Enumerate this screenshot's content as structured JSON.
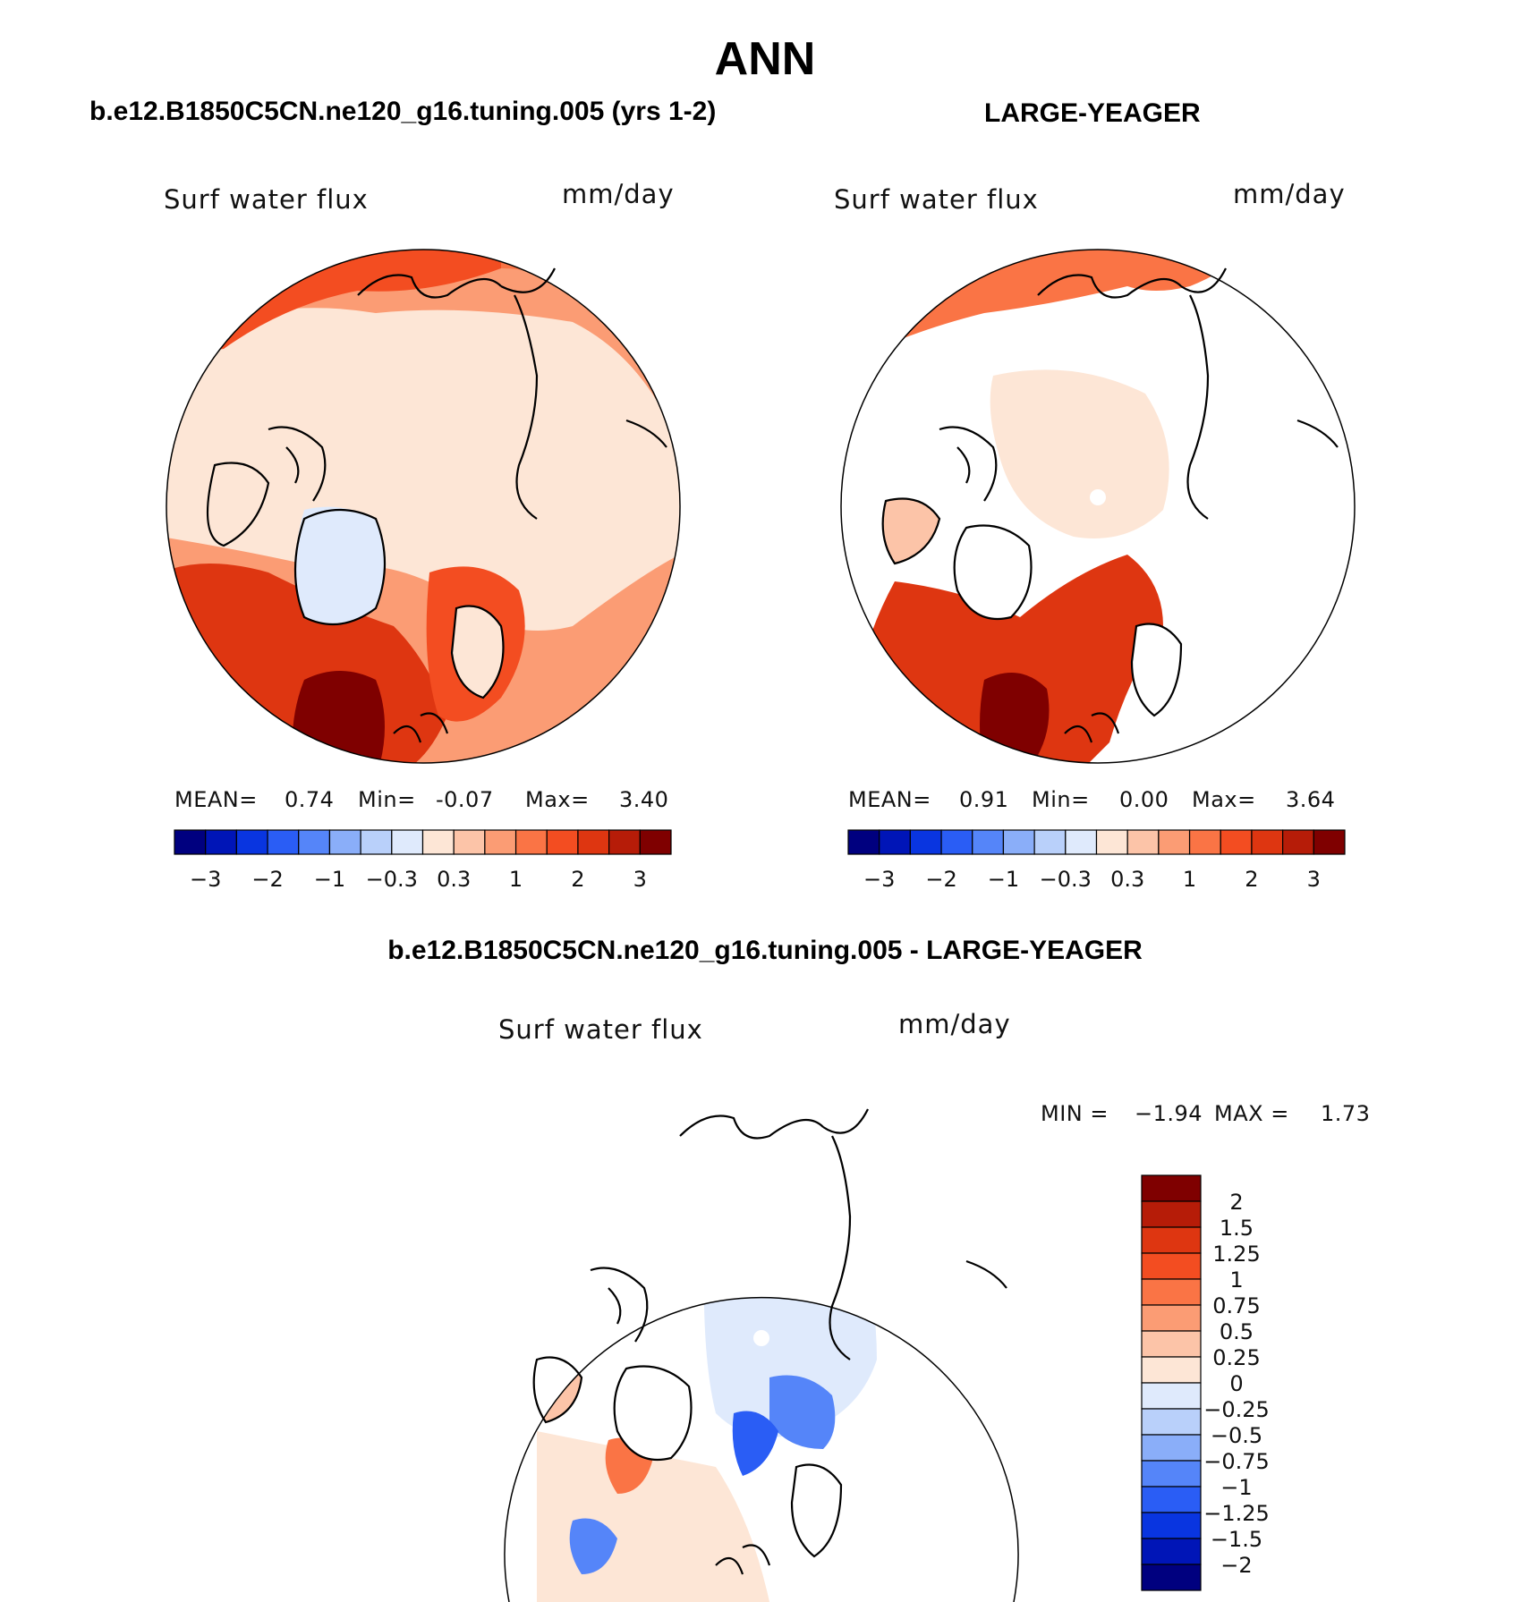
{
  "page": {
    "title": "ANN",
    "left_panel_title": "b.e12.B1850C5CN.ne120_g16.tuning.005 (yrs 1-2)",
    "right_panel_title": "LARGE-YEAGER",
    "diff_panel_title": "b.e12.B1850C5CN.ne120_g16.tuning.005 - LARGE-YEAGER"
  },
  "chart_data": [
    {
      "type": "heatmap",
      "projection": "north polar stereographic",
      "variable": "Surf water flux",
      "units": "mm/day",
      "stats": {
        "mean_label": "MEAN=",
        "mean": "0.74",
        "min_label": "Min=",
        "min": "-0.07",
        "max_label": "Max=",
        "max": "3.40"
      },
      "colorbar": {
        "orientation": "horizontal",
        "colors": [
          "#00007f",
          "#0015b7",
          "#0935e0",
          "#2a5df5",
          "#5585f9",
          "#8aaef9",
          "#b9d0fa",
          "#dfeafc",
          "#fde6d6",
          "#fcc4a8",
          "#fb9c74",
          "#fa7445",
          "#f34d21",
          "#de3611",
          "#b61c08",
          "#7f0000"
        ],
        "tick_labels": [
          "−3",
          "−2",
          "−1",
          "−0.3",
          "0.3",
          "1",
          "2",
          "3"
        ]
      }
    },
    {
      "type": "heatmap",
      "projection": "north polar stereographic",
      "variable": "Surf water flux",
      "units": "mm/day",
      "stats": {
        "mean_label": "MEAN=",
        "mean": "0.91",
        "min_label": "Min=",
        "min": "0.00",
        "max_label": "Max=",
        "max": "3.64"
      },
      "colorbar": {
        "orientation": "horizontal",
        "colors": [
          "#00007f",
          "#0015b7",
          "#0935e0",
          "#2a5df5",
          "#5585f9",
          "#8aaef9",
          "#b9d0fa",
          "#dfeafc",
          "#fde6d6",
          "#fcc4a8",
          "#fb9c74",
          "#fa7445",
          "#f34d21",
          "#de3611",
          "#b61c08",
          "#7f0000"
        ],
        "tick_labels": [
          "−3",
          "−2",
          "−1",
          "−0.3",
          "0.3",
          "1",
          "2",
          "3"
        ]
      }
    },
    {
      "type": "heatmap",
      "projection": "north polar stereographic",
      "variable": "Surf water flux",
      "units": "mm/day",
      "stats": {
        "min_label": "MIN =",
        "min": "−1.94",
        "max_label": "MAX =",
        "max": "1.73"
      },
      "colorbar": {
        "orientation": "vertical",
        "colors": [
          "#7f0000",
          "#b61c08",
          "#de3611",
          "#f34d21",
          "#fa7445",
          "#fb9c74",
          "#fcc4a8",
          "#fde6d6",
          "#dfeafc",
          "#b9d0fa",
          "#8aaef9",
          "#5585f9",
          "#2a5df5",
          "#0935e0",
          "#0015b7",
          "#00007f"
        ],
        "tick_labels": [
          "2",
          "1.5",
          "1.25",
          "1",
          "0.75",
          "0.5",
          "0.25",
          "0",
          "−0.25",
          "−0.5",
          "−0.75",
          "−1",
          "−1.25",
          "−1.5",
          "−2"
        ]
      }
    }
  ]
}
